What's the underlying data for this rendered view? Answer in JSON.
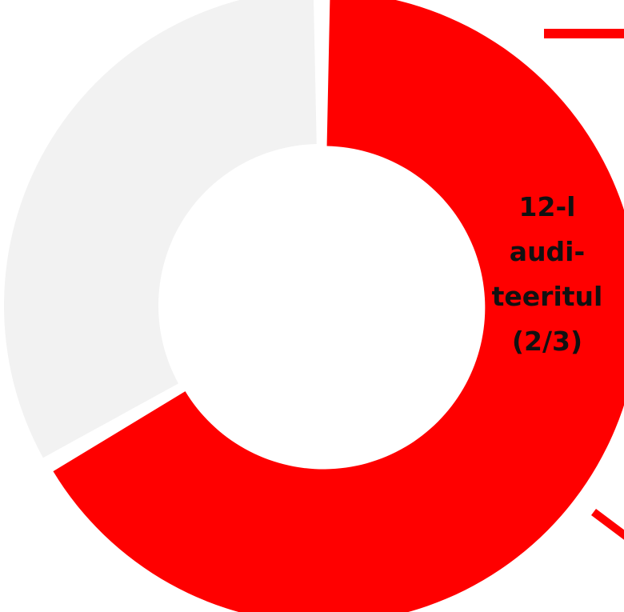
{
  "chart_data": {
    "type": "donut",
    "slices": [
      {
        "value": 2,
        "color": "#ff0000",
        "label_lines": [
          "12-l",
          "audi-",
          "teeritul",
          "(2/3)"
        ]
      },
      {
        "value": 1,
        "color": "#f2f2f2",
        "label_lines": []
      }
    ],
    "legend_color": "#ff0000"
  }
}
